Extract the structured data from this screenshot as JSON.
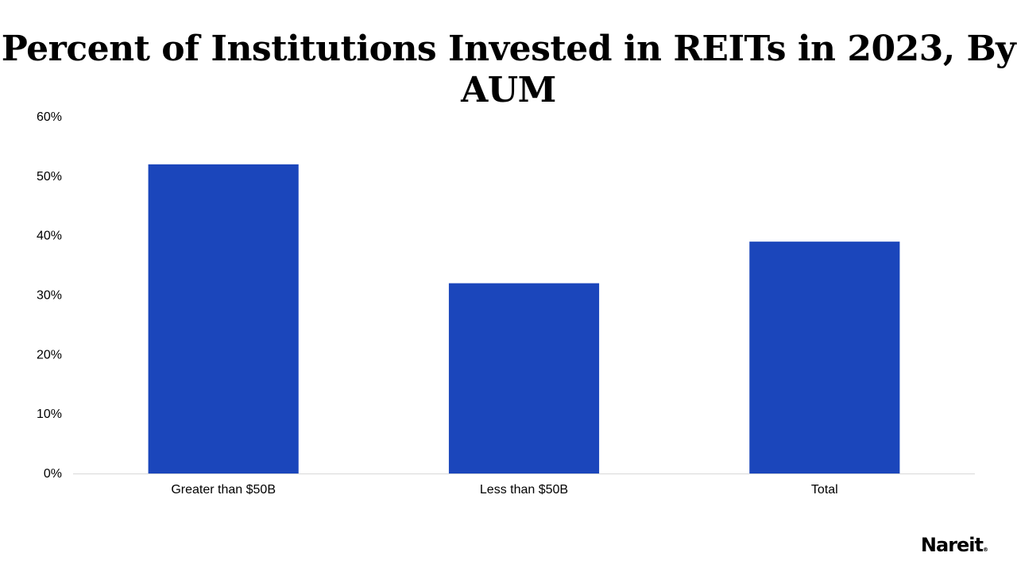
{
  "chart_data": {
    "type": "bar",
    "title": "Percent of Institutions Invested in REITs in 2023, By AUM",
    "categories": [
      "Greater than $50B",
      "Less than $50B",
      "Total"
    ],
    "values": [
      52,
      32,
      39
    ],
    "value_unit": "%",
    "ylim": [
      0,
      60
    ],
    "yticks": [
      "0%",
      "10%",
      "20%",
      "30%",
      "40%",
      "50%",
      "60%"
    ],
    "ytick_values": [
      0,
      10,
      20,
      30,
      40,
      50,
      60
    ],
    "grid": false,
    "legend": "none",
    "bar_color": "#1b46bb",
    "axis_color": "#d9d9d9"
  },
  "brand": {
    "logo_text": "Nareit",
    "logo_mark": "®"
  }
}
